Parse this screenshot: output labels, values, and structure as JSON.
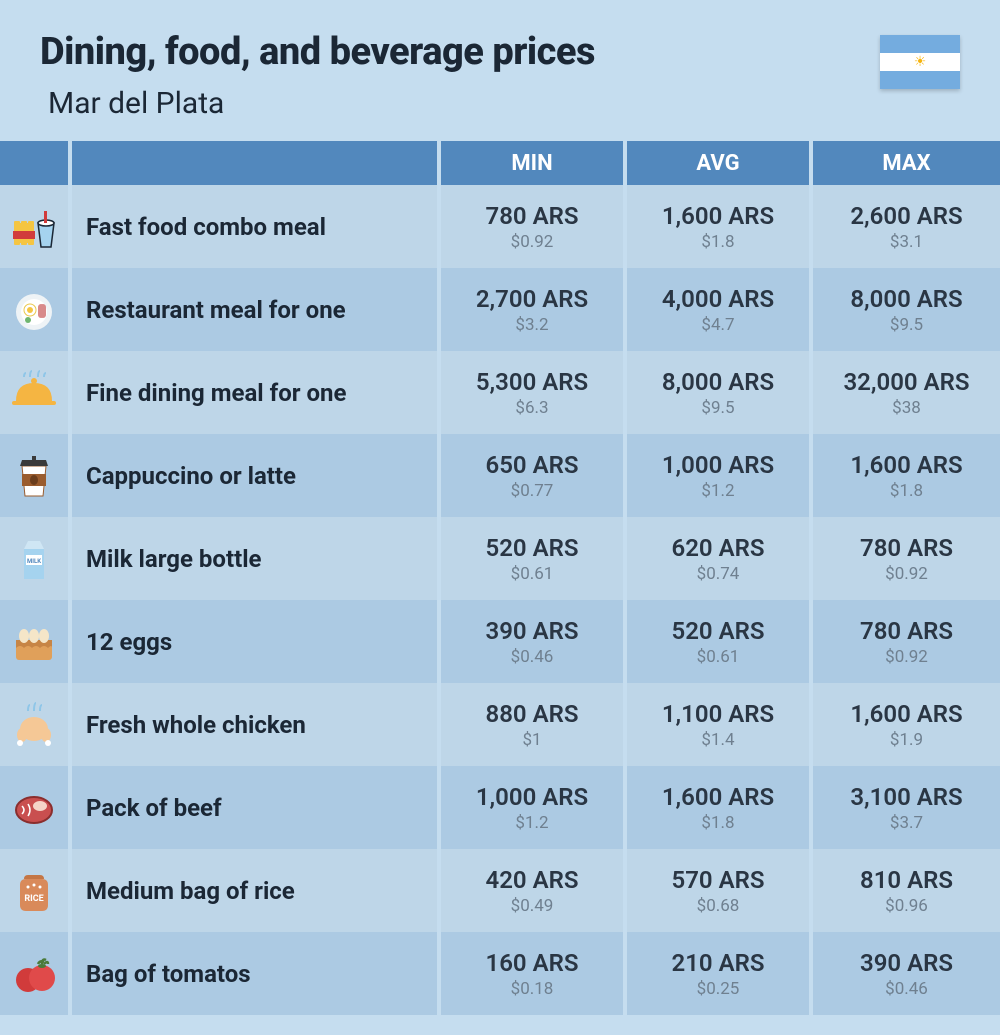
{
  "header": {
    "title": "Dining, food, and beverage prices",
    "subtitle": "Mar del Plata"
  },
  "flag": {
    "stripe_color": "#74acdf",
    "mid_color": "#ffffff",
    "sun_color": "#f6b40e"
  },
  "columns": {
    "min": "MIN",
    "avg": "AVG",
    "max": "MAX"
  },
  "colors": {
    "page_bg": "#c5ddef",
    "header_bg": "#5288bd",
    "header_text": "#ffffff",
    "row_odd": "#bed6e8",
    "row_even": "#accae3",
    "text_main": "#1b2735",
    "val_main": "#2a3644",
    "val_sub": "#6f8090"
  },
  "rows": [
    {
      "icon": "fastfood",
      "name": "Fast food combo meal",
      "min_ars": "780 ARS",
      "min_usd": "$0.92",
      "avg_ars": "1,600 ARS",
      "avg_usd": "$1.8",
      "max_ars": "2,600 ARS",
      "max_usd": "$3.1"
    },
    {
      "icon": "breakfast",
      "name": "Restaurant meal for one",
      "min_ars": "2,700 ARS",
      "min_usd": "$3.2",
      "avg_ars": "4,000 ARS",
      "avg_usd": "$4.7",
      "max_ars": "8,000 ARS",
      "max_usd": "$9.5"
    },
    {
      "icon": "cloche",
      "name": "Fine dining meal for one",
      "min_ars": "5,300 ARS",
      "min_usd": "$6.3",
      "avg_ars": "8,000 ARS",
      "avg_usd": "$9.5",
      "max_ars": "32,000 ARS",
      "max_usd": "$38"
    },
    {
      "icon": "coffee",
      "name": "Cappuccino or latte",
      "min_ars": "650 ARS",
      "min_usd": "$0.77",
      "avg_ars": "1,000 ARS",
      "avg_usd": "$1.2",
      "max_ars": "1,600 ARS",
      "max_usd": "$1.8"
    },
    {
      "icon": "milk",
      "name": "Milk large bottle",
      "min_ars": "520 ARS",
      "min_usd": "$0.61",
      "avg_ars": "620 ARS",
      "avg_usd": "$0.74",
      "max_ars": "780 ARS",
      "max_usd": "$0.92"
    },
    {
      "icon": "eggs",
      "name": "12 eggs",
      "min_ars": "390 ARS",
      "min_usd": "$0.46",
      "avg_ars": "520 ARS",
      "avg_usd": "$0.61",
      "max_ars": "780 ARS",
      "max_usd": "$0.92"
    },
    {
      "icon": "chicken",
      "name": "Fresh whole chicken",
      "min_ars": "880 ARS",
      "min_usd": "$1",
      "avg_ars": "1,100 ARS",
      "avg_usd": "$1.4",
      "max_ars": "1,600 ARS",
      "max_usd": "$1.9"
    },
    {
      "icon": "beef",
      "name": "Pack of beef",
      "min_ars": "1,000 ARS",
      "min_usd": "$1.2",
      "avg_ars": "1,600 ARS",
      "avg_usd": "$1.8",
      "max_ars": "3,100 ARS",
      "max_usd": "$3.7"
    },
    {
      "icon": "rice",
      "name": "Medium bag of rice",
      "min_ars": "420 ARS",
      "min_usd": "$0.49",
      "avg_ars": "570 ARS",
      "avg_usd": "$0.68",
      "max_ars": "810 ARS",
      "max_usd": "$0.96"
    },
    {
      "icon": "tomato",
      "name": "Bag of tomatos",
      "min_ars": "160 ARS",
      "min_usd": "$0.18",
      "avg_ars": "210 ARS",
      "avg_usd": "$0.25",
      "max_ars": "390 ARS",
      "max_usd": "$0.46"
    }
  ]
}
